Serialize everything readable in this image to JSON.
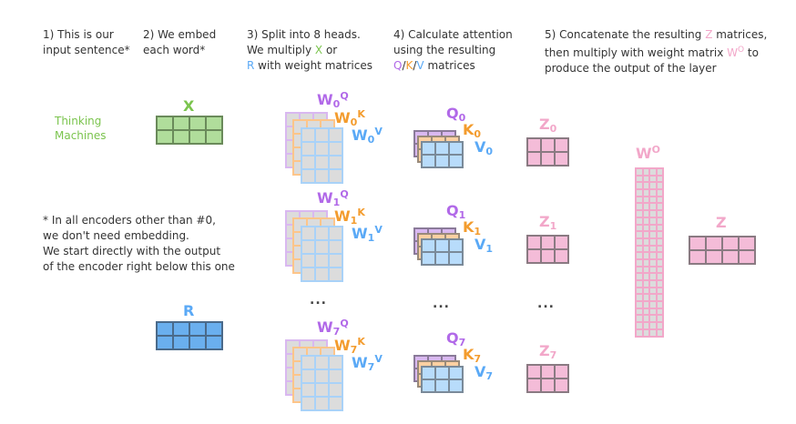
{
  "steps": [
    {
      "lines": [
        "1) This is our",
        "input sentence*"
      ]
    },
    {
      "lines": [
        "2) We embed",
        "each word*"
      ]
    },
    {
      "line1": "3) Split into 8 heads.",
      "line2": "We multiply ",
      "x": "X",
      "or": " or",
      "r": "R",
      "line3": " with weight matrices"
    },
    {
      "line1": "4) Calculate attention",
      "line2": "using the resulting",
      "q": "Q",
      "k": "K",
      "v": "V",
      "line3": " matrices"
    },
    {
      "line1": "5) Concatenate the resulting ",
      "z": "Z",
      "line1b": " matrices,",
      "line2": "then multiply with weight matrix ",
      "wo": "W",
      "wosup": "O",
      "line2b": " to",
      "line3": "produce the output of the layer"
    }
  ],
  "sentence": [
    "Thinking",
    "Machines"
  ],
  "embed_labels": {
    "x": "X",
    "r": "R"
  },
  "note": [
    "* In all encoders other than #0,",
    "we don't need embedding.",
    "We start directly with the output",
    "of the encoder right below this one"
  ],
  "heads": [
    {
      "idx": "0",
      "wq": "W",
      "wk": "W",
      "wv": "W",
      "q": "Q",
      "k": "K",
      "v": "V",
      "z": "Z"
    },
    {
      "idx": "1",
      "wq": "W",
      "wk": "W",
      "wv": "W",
      "q": "Q",
      "k": "K",
      "v": "V",
      "z": "Z"
    },
    {
      "idx": "7",
      "wq": "W",
      "wk": "W",
      "wv": "W",
      "q": "Q",
      "k": "K",
      "v": "V",
      "z": "Z"
    }
  ],
  "sup": {
    "q": "Q",
    "k": "K",
    "v": "V"
  },
  "ellipsis": "...",
  "wo": {
    "label": "W",
    "sup": "O"
  },
  "z_label": "Z",
  "colors": {
    "purple": "#b169e8",
    "orange": "#f39c2e",
    "blue": "#5aa9f6",
    "green": "#7bc44e",
    "pink": "#f2a7c9",
    "grey": "#dcdcdc"
  }
}
